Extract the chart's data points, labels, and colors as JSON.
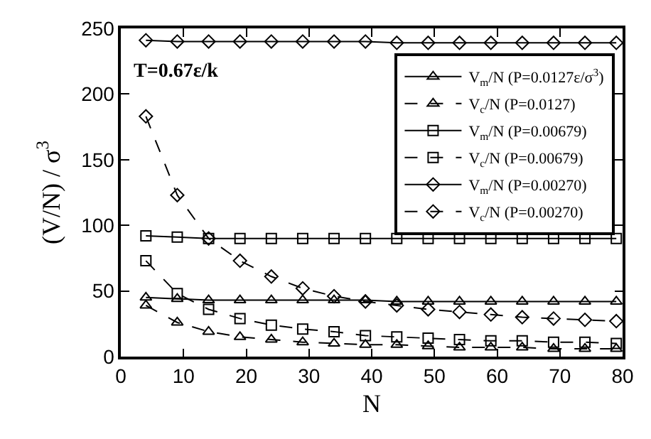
{
  "chart_data": {
    "type": "line",
    "xlabel": "N",
    "ylabel": "(V/N) / σ$^{3}$",
    "annotations": [
      "T=0.67ε/k"
    ],
    "x": [
      4,
      9,
      14,
      19,
      24,
      29,
      34,
      39,
      44,
      49,
      54,
      59,
      64,
      69,
      74,
      79
    ],
    "series": [
      {
        "name": "V$_{m}$/N (P=0.0127ε/σ$^{3}$)",
        "color": "#000000",
        "marker": "triangle",
        "line_style": "solid",
        "values": [
          45,
          44,
          43,
          43,
          43,
          43,
          43,
          43,
          42,
          42,
          42,
          42,
          42,
          42,
          42,
          42
        ]
      },
      {
        "name": "V$_{c}$/N (P=0.0127)",
        "color": "#000000",
        "marker": "triangle",
        "line_style": "dashed",
        "values": [
          39,
          26,
          19,
          15,
          13,
          11,
          10,
          9,
          9,
          8,
          7,
          7,
          7,
          6,
          6,
          6
        ]
      },
      {
        "name": "V$_{m}$/N (P=0.00679)",
        "color": "#000000",
        "marker": "square",
        "line_style": "solid",
        "values": [
          92,
          91,
          90,
          90,
          90,
          90,
          90,
          90,
          90,
          90,
          90,
          90,
          90,
          90,
          90,
          90
        ]
      },
      {
        "name": "V$_{c}$/N (P=0.00679)",
        "color": "#000000",
        "marker": "square",
        "line_style": "dashed",
        "values": [
          73,
          48,
          36,
          29,
          24,
          21,
          19,
          16,
          15,
          14,
          13,
          12,
          12,
          11,
          11,
          10
        ]
      },
      {
        "name": "V$_{m}$/N (P=0.00270)",
        "color": "#000000",
        "marker": "diamond",
        "line_style": "solid",
        "values": [
          241,
          240,
          240,
          240,
          240,
          240,
          240,
          240,
          239,
          239,
          239,
          239,
          239,
          239,
          239,
          239
        ]
      },
      {
        "name": "V$_{c}$/N (P=0.00270)",
        "color": "#000000",
        "marker": "diamond",
        "line_style": "dashed",
        "values": [
          183,
          123,
          90,
          73,
          61,
          52,
          46,
          42,
          39,
          36,
          34,
          32,
          30,
          29,
          28,
          27
        ]
      }
    ],
    "xlim": [
      0,
      80
    ],
    "xticks": [
      0,
      10,
      20,
      30,
      40,
      50,
      60,
      70,
      80
    ],
    "ylim": [
      0,
      250
    ],
    "yticks": [
      0,
      50,
      100,
      150,
      200,
      250
    ],
    "legend": "top right"
  }
}
